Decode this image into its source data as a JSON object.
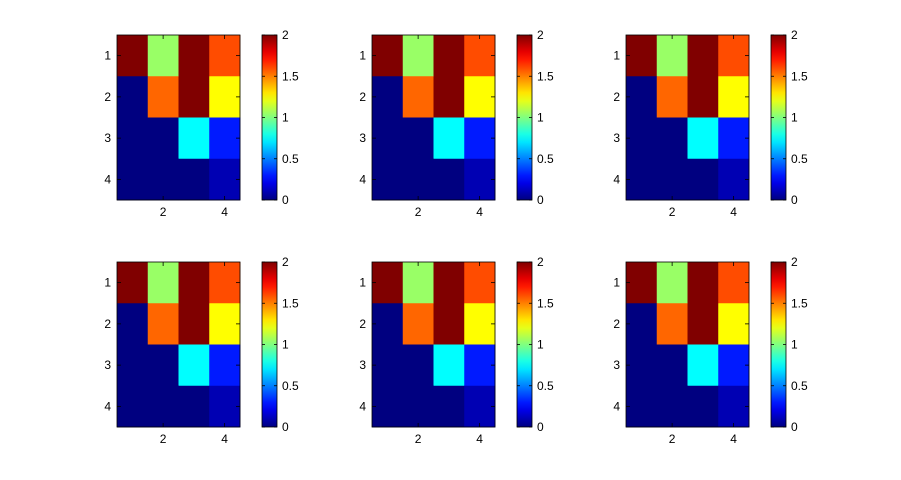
{
  "chart_data": {
    "type": "heatmap",
    "layout": {
      "rows": 2,
      "cols": 3
    },
    "colormap": "jet",
    "panels": [
      {
        "rows": [
          1,
          2,
          3,
          4
        ],
        "cols": [
          1,
          2,
          3,
          4
        ],
        "values": [
          [
            2,
            1.05,
            2,
            1.6
          ],
          [
            0,
            1.55,
            2,
            1.25
          ],
          [
            0,
            0,
            0.75,
            0.3
          ],
          [
            0,
            0,
            0,
            0.1
          ]
        ],
        "xticks": [
          "2",
          "4"
        ],
        "yticks": [
          "1",
          "2",
          "3",
          "4"
        ],
        "clim": [
          0,
          2
        ],
        "colorbar_ticks": [
          "0",
          "0.5",
          "1",
          "1.5",
          "2"
        ]
      },
      {
        "rows": [
          1,
          2,
          3,
          4
        ],
        "cols": [
          1,
          2,
          3,
          4
        ],
        "values": [
          [
            2,
            1.05,
            2,
            1.6
          ],
          [
            0,
            1.55,
            2,
            1.25
          ],
          [
            0,
            0,
            0.75,
            0.3
          ],
          [
            0,
            0,
            0,
            0.1
          ]
        ],
        "xticks": [
          "2",
          "4"
        ],
        "yticks": [
          "1",
          "2",
          "3",
          "4"
        ],
        "clim": [
          0,
          2
        ],
        "colorbar_ticks": [
          "0",
          "0.5",
          "1",
          "1.5",
          "2"
        ]
      },
      {
        "rows": [
          1,
          2,
          3,
          4
        ],
        "cols": [
          1,
          2,
          3,
          4
        ],
        "values": [
          [
            2,
            1.05,
            2,
            1.6
          ],
          [
            0,
            1.55,
            2,
            1.25
          ],
          [
            0,
            0,
            0.75,
            0.3
          ],
          [
            0,
            0,
            0,
            0.1
          ]
        ],
        "xticks": [
          "2",
          "4"
        ],
        "yticks": [
          "1",
          "2",
          "3",
          "4"
        ],
        "clim": [
          0,
          2
        ],
        "colorbar_ticks": [
          "0",
          "0.5",
          "1",
          "1.5",
          "2"
        ]
      },
      {
        "rows": [
          1,
          2,
          3,
          4
        ],
        "cols": [
          1,
          2,
          3,
          4
        ],
        "values": [
          [
            2,
            1.05,
            2,
            1.6
          ],
          [
            0,
            1.55,
            2,
            1.25
          ],
          [
            0,
            0,
            0.75,
            0.3
          ],
          [
            0,
            0,
            0,
            0.1
          ]
        ],
        "xticks": [
          "2",
          "4"
        ],
        "yticks": [
          "1",
          "2",
          "3",
          "4"
        ],
        "clim": [
          0,
          2
        ],
        "colorbar_ticks": [
          "0",
          "0.5",
          "1",
          "1.5",
          "2"
        ]
      },
      {
        "rows": [
          1,
          2,
          3,
          4
        ],
        "cols": [
          1,
          2,
          3,
          4
        ],
        "values": [
          [
            2,
            1.05,
            2,
            1.6
          ],
          [
            0,
            1.55,
            2,
            1.25
          ],
          [
            0,
            0,
            0.75,
            0.3
          ],
          [
            0,
            0,
            0,
            0.1
          ]
        ],
        "xticks": [
          "2",
          "4"
        ],
        "yticks": [
          "1",
          "2",
          "3",
          "4"
        ],
        "clim": [
          0,
          2
        ],
        "colorbar_ticks": [
          "0",
          "0.5",
          "1",
          "1.5",
          "2"
        ]
      },
      {
        "rows": [
          1,
          2,
          3,
          4
        ],
        "cols": [
          1,
          2,
          3,
          4
        ],
        "values": [
          [
            2,
            1.05,
            2,
            1.6
          ],
          [
            0,
            1.55,
            2,
            1.25
          ],
          [
            0,
            0,
            0.75,
            0.3
          ],
          [
            0,
            0,
            0,
            0.1
          ]
        ],
        "xticks": [
          "2",
          "4"
        ],
        "yticks": [
          "1",
          "2",
          "3",
          "4"
        ],
        "clim": [
          0,
          2
        ],
        "colorbar_ticks": [
          "0",
          "0.5",
          "1",
          "1.5",
          "2"
        ]
      }
    ]
  }
}
